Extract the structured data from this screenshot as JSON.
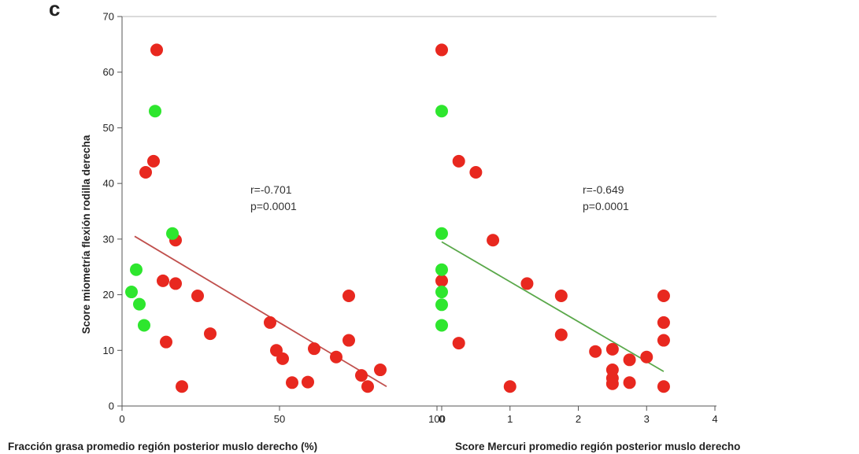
{
  "figure": {
    "panel_letter": "c",
    "y_axis_title": "Score miometría flexión rodilla derecha"
  },
  "chart_data": [
    {
      "type": "scatter",
      "xlabel": "Fracción grasa promedio región posterior muslo derecho (%)",
      "ylabel": "Score miometría flexión rodilla derecha",
      "xlim": [
        0,
        100
      ],
      "ylim": [
        0,
        70
      ],
      "x_ticks": [
        {
          "value": 0,
          "label": "0"
        },
        {
          "value": 50,
          "label": "50"
        },
        {
          "value": 100,
          "label": "100"
        }
      ],
      "y_ticks": [
        0,
        10,
        20,
        30,
        40,
        50,
        60,
        70
      ],
      "annotation": [
        "r=-0.701",
        "p=0.0001"
      ],
      "fit_line": {
        "x": [
          4,
          84
        ],
        "y": [
          30.5,
          3.5
        ],
        "color": "#c0504d"
      },
      "series": [
        {
          "color": "#e8281f",
          "points": [
            [
              11,
              64
            ],
            [
              10,
              44
            ],
            [
              7.5,
              42
            ],
            [
              13,
              22.5
            ],
            [
              17,
              29.8
            ],
            [
              17,
              22
            ],
            [
              19,
              3.5
            ],
            [
              24,
              19.8
            ],
            [
              14,
              11.5
            ],
            [
              28,
              13
            ],
            [
              47,
              15
            ],
            [
              49,
              10
            ],
            [
              51,
              8.5
            ],
            [
              54,
              4.2
            ],
            [
              59,
              4.3
            ],
            [
              61,
              10.3
            ],
            [
              68,
              8.8
            ],
            [
              72,
              19.8
            ],
            [
              72,
              11.8
            ],
            [
              76,
              5.5
            ],
            [
              78,
              3.5
            ],
            [
              82,
              6.5
            ]
          ]
        },
        {
          "color": "#2ee62e",
          "points": [
            [
              10.5,
              53
            ],
            [
              4.5,
              24.5
            ],
            [
              3,
              20.5
            ],
            [
              5.5,
              18.3
            ],
            [
              7,
              14.5
            ],
            [
              16,
              31
            ]
          ]
        }
      ]
    },
    {
      "type": "scatter",
      "xlabel": "Score Mercuri promedio región posterior muslo derecho",
      "ylabel": "",
      "xlim": [
        0,
        4
      ],
      "ylim": [
        0,
        70
      ],
      "x_ticks": [
        {
          "value": 0,
          "label": "0"
        },
        {
          "value": 1,
          "label": "1"
        },
        {
          "value": 2,
          "label": "2"
        },
        {
          "value": 3,
          "label": "3"
        },
        {
          "value": 4,
          "label": "4"
        }
      ],
      "annotation": [
        "r=-0.649",
        "p=0.0001"
      ],
      "fit_line": {
        "x": [
          0,
          3.25
        ],
        "y": [
          29.5,
          6.2
        ],
        "color": "#5aa84a"
      },
      "series": [
        {
          "color": "#e8281f",
          "points": [
            [
              0,
              64
            ],
            [
              0,
              22.5
            ],
            [
              0.25,
              44
            ],
            [
              0.5,
              42
            ],
            [
              0.75,
              29.8
            ],
            [
              0.25,
              11.3
            ],
            [
              1,
              3.5
            ],
            [
              1.25,
              22
            ],
            [
              1.75,
              19.8
            ],
            [
              1.75,
              12.8
            ],
            [
              2.25,
              9.8
            ],
            [
              2.5,
              10.2
            ],
            [
              2.5,
              6.5
            ],
            [
              2.5,
              5
            ],
            [
              2.5,
              4
            ],
            [
              2.75,
              8.3
            ],
            [
              2.75,
              4.2
            ],
            [
              3,
              8.8
            ],
            [
              3.25,
              19.8
            ],
            [
              3.25,
              15
            ],
            [
              3.25,
              11.8
            ],
            [
              3.25,
              3.5
            ]
          ]
        },
        {
          "color": "#2ee62e",
          "points": [
            [
              0,
              53
            ],
            [
              0,
              31
            ],
            [
              0,
              24.5
            ],
            [
              0,
              20.5
            ],
            [
              0,
              18.2
            ],
            [
              0,
              14.5
            ]
          ]
        }
      ]
    }
  ]
}
